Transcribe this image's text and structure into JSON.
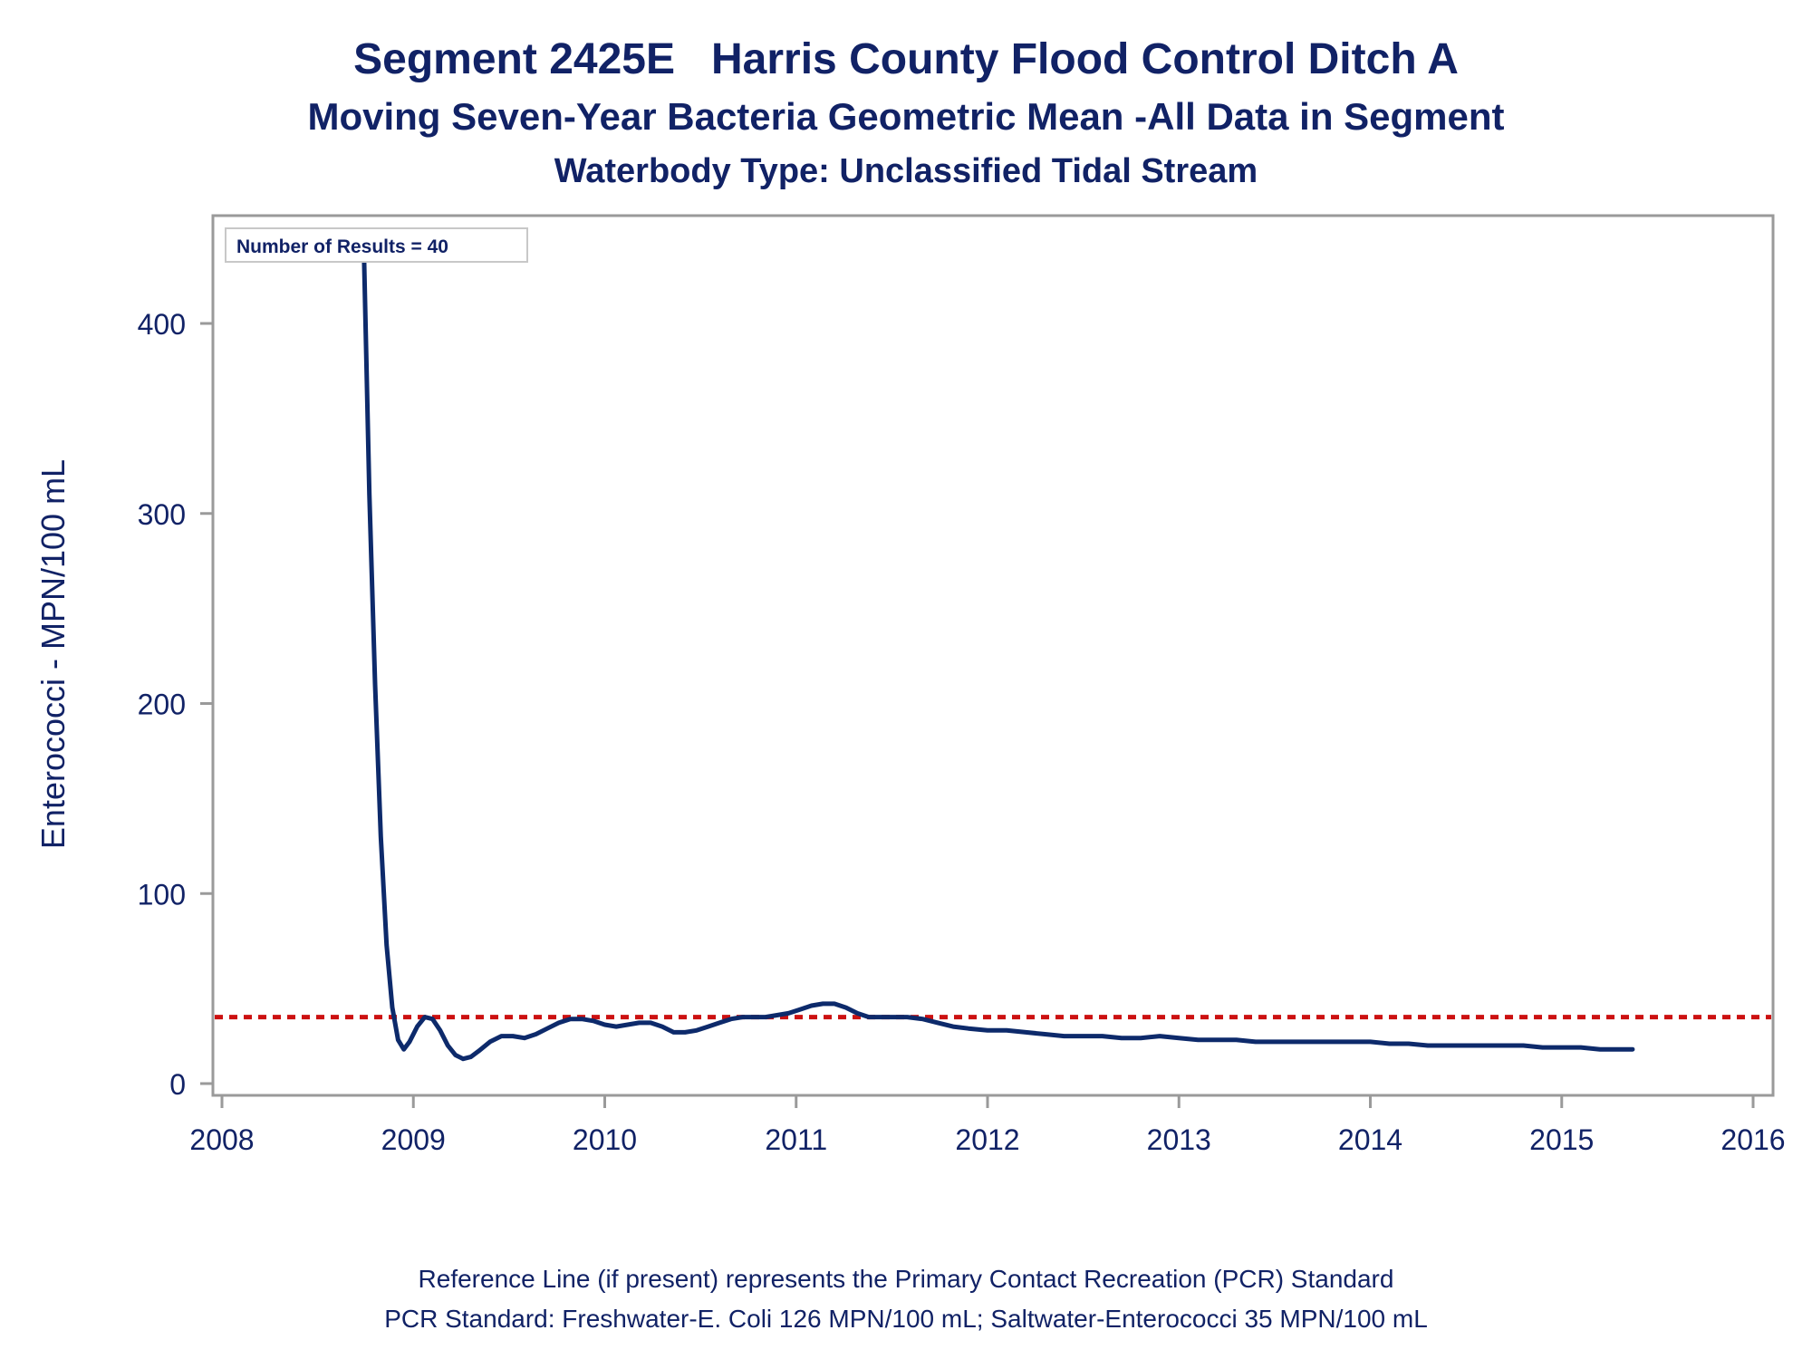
{
  "titles": {
    "line1": "Segment 2425E   Harris County Flood Control Ditch A",
    "line2": "Moving Seven-Year Bacteria Geometric Mean -All Data in Segment",
    "line3": "Waterbody Type: Unclassified Tidal Stream"
  },
  "footnotes": {
    "line1": "Reference Line (if present) represents the Primary Contact Recreation (PCR) Standard",
    "line2": "PCR Standard: Freshwater-E. Coli 126 MPN/100 mL; Saltwater-Enterococci 35 MPN/100 mL"
  },
  "colors": {
    "series": "#0d2a6b",
    "reference": "#cc1111",
    "frame": "#9a9a9a",
    "text": "#112266"
  },
  "chart_data": {
    "type": "line",
    "title": "",
    "ylabel": "Enterococci - MPN/100 mL",
    "xlabel": "",
    "inset_label": "Number of Results = 40",
    "xlim": [
      2008,
      2016
    ],
    "ylim": [
      -5,
      457
    ],
    "x_ticks": [
      2008,
      2009,
      2010,
      2011,
      2012,
      2013,
      2014,
      2015,
      2016
    ],
    "x_tick_labels": [
      "2008",
      "2009",
      "2010",
      "2011",
      "2012",
      "2013",
      "2014",
      "2015",
      "2016"
    ],
    "y_ticks": [
      0,
      100,
      200,
      300,
      400
    ],
    "y_tick_labels": [
      "0",
      "100",
      "200",
      "300",
      "400"
    ],
    "grid": false,
    "reference_line": {
      "y": 35,
      "style": "dotted",
      "color": "#cc1111"
    },
    "series": [
      {
        "x": [
          2008.74,
          2008.77,
          2008.8,
          2008.83,
          2008.86,
          2008.89,
          2008.92,
          2008.95,
          2008.98,
          2009.02,
          2009.06,
          2009.1,
          2009.14,
          2009.18,
          2009.22,
          2009.26,
          2009.3,
          2009.34,
          2009.4,
          2009.46,
          2009.52,
          2009.58,
          2009.64,
          2009.7,
          2009.76,
          2009.82,
          2009.88,
          2009.94,
          2010.0,
          2010.06,
          2010.12,
          2010.18,
          2010.24,
          2010.3,
          2010.36,
          2010.42,
          2010.48,
          2010.54,
          2010.6,
          2010.66,
          2010.72,
          2010.78,
          2010.84,
          2010.9,
          2010.96,
          2011.02,
          2011.08,
          2011.14,
          2011.2,
          2011.26,
          2011.32,
          2011.38,
          2011.44,
          2011.5,
          2011.58,
          2011.66,
          2011.74,
          2011.82,
          2011.9,
          2012.0,
          2012.1,
          2012.2,
          2012.3,
          2012.4,
          2012.5,
          2012.6,
          2012.7,
          2012.8,
          2012.9,
          2013.0,
          2013.1,
          2013.2,
          2013.3,
          2013.4,
          2013.5,
          2013.6,
          2013.7,
          2013.8,
          2013.9,
          2014.0,
          2014.1,
          2014.2,
          2014.3,
          2014.4,
          2014.5,
          2014.6,
          2014.7,
          2014.8,
          2014.9,
          2015.0,
          2015.1,
          2015.2,
          2015.3,
          2015.37
        ],
        "y": [
          446,
          310,
          210,
          130,
          73,
          40,
          23,
          18,
          22,
          30,
          35,
          34,
          28,
          20,
          15,
          13,
          14,
          17,
          22,
          25,
          25,
          24,
          26,
          29,
          32,
          34,
          34,
          33,
          31,
          30,
          31,
          32,
          32,
          30,
          27,
          27,
          28,
          30,
          32,
          34,
          35,
          35,
          35,
          36,
          37,
          39,
          41,
          42,
          42,
          40,
          37,
          35,
          35,
          35,
          35,
          34,
          32,
          30,
          29,
          28,
          28,
          27,
          26,
          25,
          25,
          25,
          24,
          24,
          25,
          24,
          23,
          23,
          23,
          22,
          22,
          22,
          22,
          22,
          22,
          22,
          21,
          21,
          20,
          20,
          20,
          20,
          20,
          20,
          19,
          19,
          19,
          18,
          18,
          18
        ]
      }
    ]
  }
}
